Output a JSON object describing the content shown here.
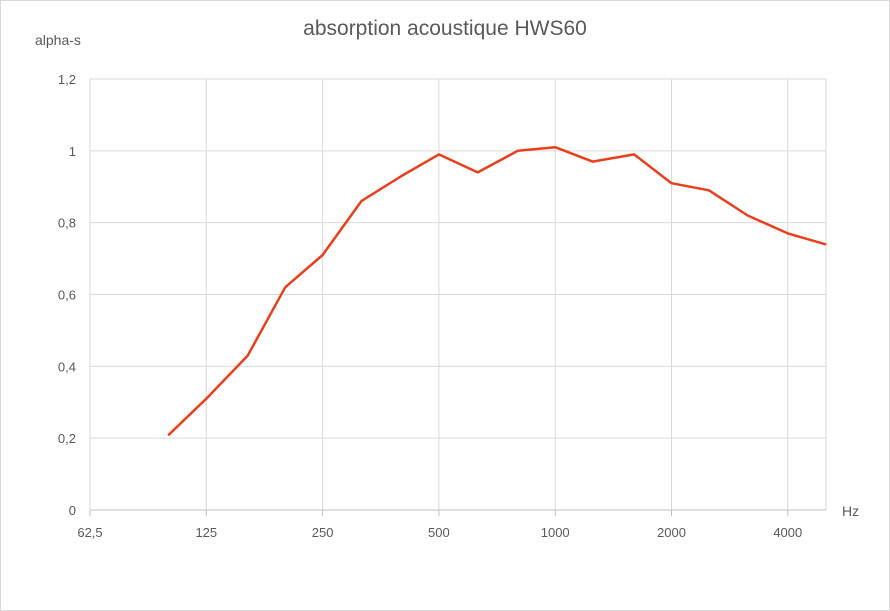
{
  "chart_data": {
    "type": "line",
    "title": "absorption acoustique HWS60",
    "ylabel": "alpha-s",
    "xlabel": "Hz",
    "x_axis_tick_labels": [
      "62,5",
      "125",
      "250",
      "500",
      "1000",
      "2000",
      "4000"
    ],
    "y_axis_tick_labels": [
      "0",
      "0,2",
      "0,4",
      "0,6",
      "0,8",
      "1",
      "1,2"
    ],
    "ylim": [
      0,
      1.2
    ],
    "y_ticks": [
      0,
      0.2,
      0.4,
      0.6,
      0.8,
      1,
      1.2
    ],
    "x_scale": "octave",
    "x_range_octaves_from_62_5": [
      0,
      6.33
    ],
    "grid": true,
    "legend": "none",
    "series": [
      {
        "color": "#e8401c",
        "x": [
          100,
          125,
          160,
          200,
          250,
          315,
          400,
          500,
          630,
          800,
          1000,
          1250,
          1600,
          2000,
          2500,
          3150,
          4000,
          5000
        ],
        "values": [
          0.21,
          0.31,
          0.43,
          0.62,
          0.71,
          0.86,
          0.93,
          0.99,
          0.94,
          1.0,
          1.01,
          0.97,
          0.99,
          0.91,
          0.89,
          0.82,
          0.77,
          0.74
        ]
      }
    ]
  }
}
